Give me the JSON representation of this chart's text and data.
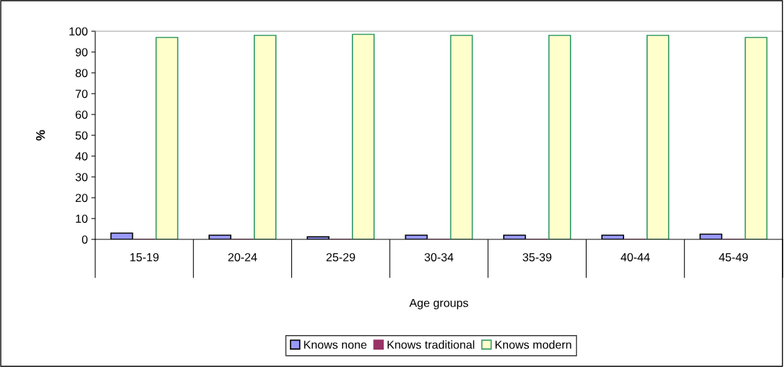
{
  "chart_data": {
    "type": "bar",
    "xlabel": "Age groups",
    "ylabel": "%",
    "categories": [
      "15-19",
      "20-24",
      "25-29",
      "30-34",
      "35-39",
      "40-44",
      "45-49"
    ],
    "series": [
      {
        "name": "Knows none",
        "color": "#9999ff",
        "values": [
          3,
          2,
          1.2,
          2,
          2,
          2,
          2.5
        ]
      },
      {
        "name": "Knows traditional",
        "color": "#993366",
        "values": [
          0,
          0,
          0,
          0,
          0,
          0,
          0
        ]
      },
      {
        "name": "Knows modern",
        "color": "#ffffcc",
        "values": [
          97,
          98,
          98.5,
          98,
          98,
          98,
          97
        ]
      }
    ],
    "ylim": [
      0,
      100
    ],
    "yticks": [
      0,
      10,
      20,
      30,
      40,
      50,
      60,
      70,
      80,
      90,
      100
    ],
    "grid": false,
    "legend": "bottom"
  }
}
